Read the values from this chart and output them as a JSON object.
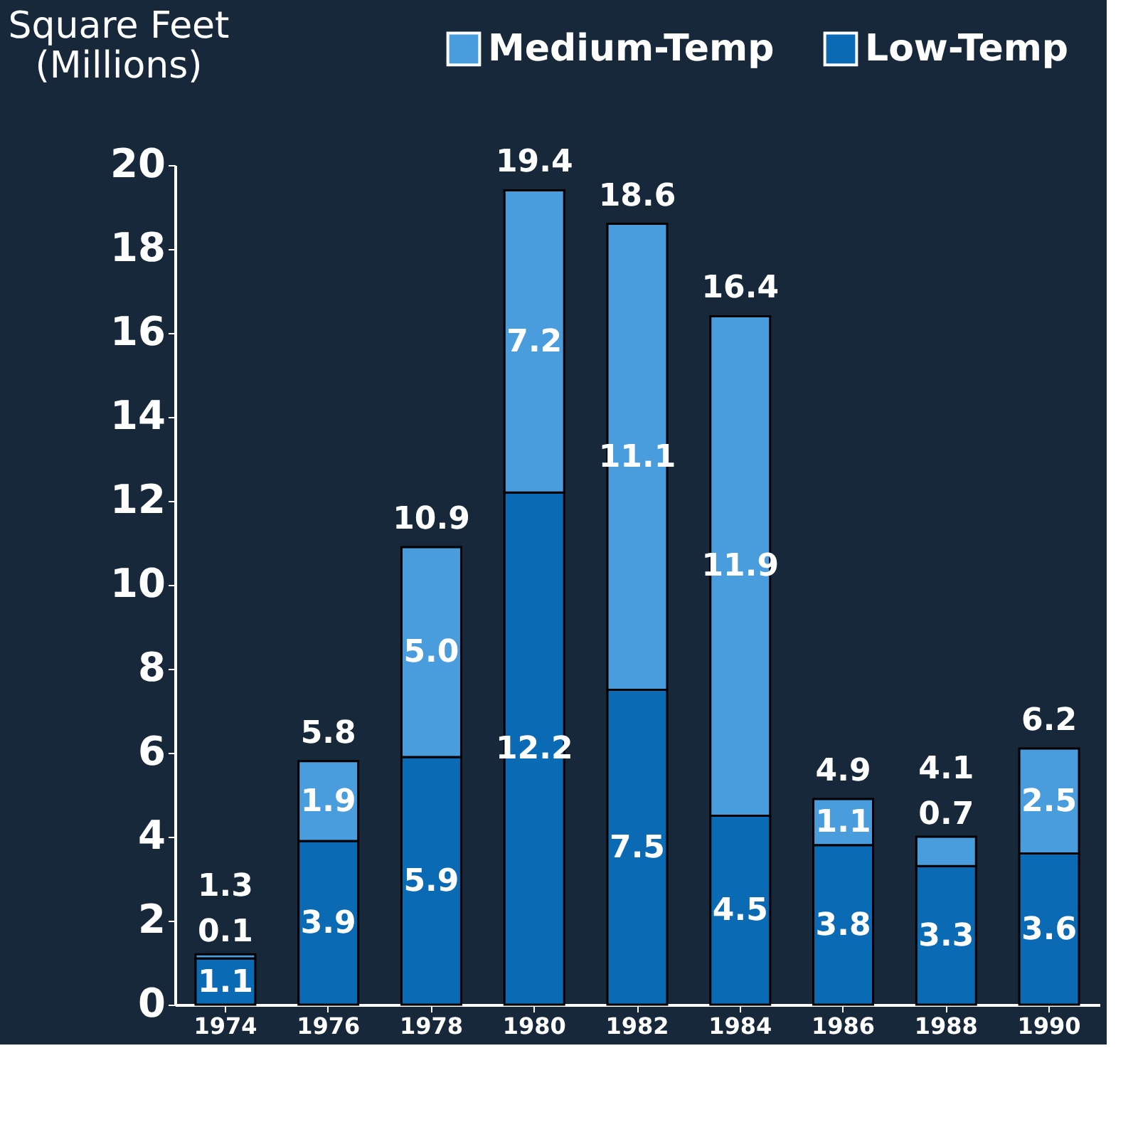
{
  "chart_data": {
    "type": "bar",
    "stacked": true,
    "ylabel": "Square Feet (Millions)",
    "categories": [
      "1974",
      "1976",
      "1978",
      "1980",
      "1982",
      "1984",
      "1986",
      "1988",
      "1990"
    ],
    "series": [
      {
        "name": "Low-Temp",
        "color": "#0a6ab4",
        "values": [
          1.1,
          3.9,
          5.9,
          12.2,
          7.5,
          4.5,
          3.8,
          3.3,
          3.6
        ],
        "value_labels": [
          "1.1",
          "3.9",
          "5.9",
          "12.2",
          "7.5",
          "4.5",
          "3.8",
          "3.3",
          "3.6"
        ]
      },
      {
        "name": "Medium-Temp",
        "color": "#4a9ddc",
        "values": [
          0.1,
          1.9,
          5.0,
          7.2,
          11.1,
          11.9,
          1.1,
          0.7,
          2.5
        ],
        "value_labels": [
          "0.1",
          "1.9",
          "5.0",
          "7.2",
          "11.1",
          "11.9",
          "1.1",
          "0.7",
          "2.5"
        ]
      }
    ],
    "totals": [
      "1.3",
      "5.8",
      "10.9",
      "19.4",
      "18.6",
      "16.4",
      "4.9",
      "4.1",
      "6.2"
    ],
    "ylim": [
      0,
      20
    ],
    "yticks": [
      0,
      2,
      4,
      6,
      8,
      10,
      12,
      14,
      16,
      18,
      20
    ],
    "grid": false,
    "legend": "top"
  }
}
